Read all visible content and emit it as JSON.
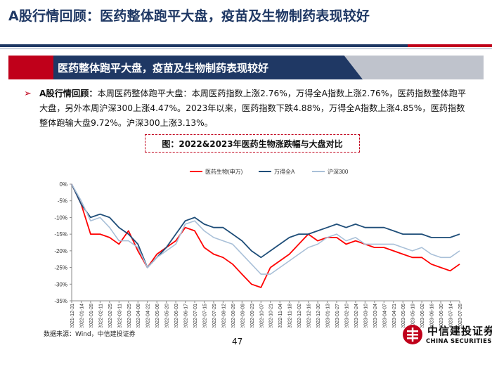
{
  "slide": {
    "title": "A股行情回顾：医药整体跑平大盘，疫苗及生物制药表现较好",
    "banner": "医药整体跑平大盘，疫苗及生物制药表现较好",
    "bullet_lead": "A股行情回顾：",
    "bullet_body": "本周医药整体跑平大盘：本周医药指数上涨2.76%，万得全A指数上涨2.76%，医药指数整体跑平大盘，另外本周沪深300上涨4.47%。2023年以来，医药指数下跌4.88%，万得全A指数上涨4.85%，医药指数整体跑输大盘9.72%。沪深300上涨3.13%。",
    "figure_title": "图：2022&2023年医药生物涨跌幅与大盘对比",
    "source": "数据来源：Wind，中信建投证券",
    "page_number": "47",
    "logo_cn": "中信建投证券",
    "logo_en": "CHINA SECURITIES"
  },
  "colors": {
    "navy": "#1f3864",
    "red": "#c0001a",
    "banner_gray": "#bfc3cc",
    "series_pharma": "#ff0000",
    "series_wind": "#1f4e79",
    "series_csi300": "#a9c0d8"
  },
  "chart_data": {
    "type": "line",
    "title": "",
    "xlabel": "",
    "ylabel": "",
    "ylim": [
      -35,
      0
    ],
    "yticks": [
      0,
      -5,
      -10,
      -15,
      -20,
      -25,
      -30,
      -35
    ],
    "ytick_labels": [
      "0%",
      "-5%",
      "-10%",
      "-15%",
      "-20%",
      "-25%",
      "-30%",
      "-35%"
    ],
    "grid": false,
    "legend_position": "top",
    "x": [
      "2021-12-31",
      "2022-01-14",
      "2022-01-28",
      "2022-02-11",
      "2022-02-25",
      "2022-03-11",
      "2022-03-25",
      "2022-04-08",
      "2022-04-22",
      "2022-05-06",
      "2022-05-20",
      "2022-06-03",
      "2022-06-17",
      "2022-07-01",
      "2022-07-15",
      "2022-07-29",
      "2022-08-12",
      "2022-08-26",
      "2022-09-09",
      "2022-09-23",
      "2022-10-07",
      "2022-10-21",
      "2022-11-04",
      "2022-11-18",
      "2022-12-02",
      "2022-12-16",
      "2022-12-30",
      "2023-01-13",
      "2023-01-27",
      "2023-02-10",
      "2023-02-24",
      "2023-03-10",
      "2023-03-24",
      "2023-04-07",
      "2023-04-21",
      "2023-05-05",
      "2023-05-19",
      "2023-06-02",
      "2023-06-16",
      "2023-06-30",
      "2023-07-14",
      "2023-07-28"
    ],
    "series": [
      {
        "name": "医药生物(申万)",
        "values": [
          0,
          -6,
          -15,
          -15,
          -16,
          -18,
          -14,
          -20,
          -25,
          -21,
          -19,
          -17,
          -13,
          -14,
          -19,
          -21,
          -22,
          -24,
          -27,
          -30,
          -31,
          -25,
          -23,
          -21,
          -18,
          -15,
          -17,
          -16,
          -16,
          -18,
          -17,
          -18,
          -19,
          -19,
          -20,
          -21,
          -22,
          -22,
          -24,
          -25,
          -26,
          -24
        ]
      },
      {
        "name": "万得全A",
        "values": [
          0,
          -6,
          -10,
          -9,
          -10,
          -13,
          -15,
          -18,
          -25,
          -22,
          -19,
          -15,
          -11,
          -10,
          -12,
          -13,
          -13,
          -15,
          -17,
          -20,
          -22,
          -20,
          -18,
          -16,
          -15,
          -15,
          -14,
          -13,
          -12,
          -13,
          -12,
          -13,
          -13,
          -13,
          -14,
          -15,
          -15,
          -15,
          -16,
          -16,
          -16,
          -15
        ]
      },
      {
        "name": "沪深300",
        "values": [
          0,
          -5,
          -11,
          -10,
          -13,
          -17,
          -17,
          -19,
          -25,
          -22,
          -20,
          -18,
          -12,
          -11,
          -14,
          -16,
          -17,
          -18,
          -21,
          -24,
          -27,
          -27,
          -25,
          -23,
          -21,
          -19,
          -18,
          -16,
          -15,
          -17,
          -16,
          -18,
          -18,
          -18,
          -18,
          -19,
          -20,
          -19,
          -21,
          -22,
          -22,
          -20
        ]
      }
    ]
  }
}
